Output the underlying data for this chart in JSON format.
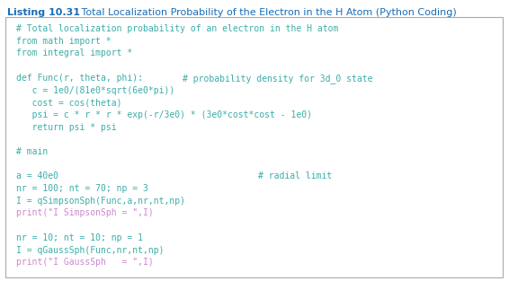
{
  "title_bold": "Listing 10.31",
  "title_rest": "   Total Localization Probability of the Electron in the H Atom (Python Coding)",
  "title_color": "#1a6db5",
  "background_color": "#ffffff",
  "box_bg_color": "#ffffff",
  "box_edge_color": "#aaaaaa",
  "code_lines": [
    {
      "indent": 0,
      "segments": [
        {
          "text": "# Total localization probability of an electron in the H atom",
          "color": "#3aada8"
        }
      ]
    },
    {
      "indent": 0,
      "segments": [
        {
          "text": "from math import *",
          "color": "#3aada8"
        }
      ]
    },
    {
      "indent": 0,
      "segments": [
        {
          "text": "from integral import *",
          "color": "#3aada8"
        }
      ]
    },
    {
      "indent": 0,
      "segments": []
    },
    {
      "indent": 0,
      "segments": [
        {
          "text": "def Func(r, theta, phi):                    ",
          "color": "#3aada8"
        },
        {
          "text": "# probability density for 3d_0 state",
          "color": "#3aada8"
        }
      ]
    },
    {
      "indent": 0,
      "segments": [
        {
          "text": "   c = 1e0/(81e0*sqrt(6e0*pi))",
          "color": "#3aada8"
        }
      ]
    },
    {
      "indent": 0,
      "segments": [
        {
          "text": "   cost = cos(theta)",
          "color": "#3aada8"
        }
      ]
    },
    {
      "indent": 0,
      "segments": [
        {
          "text": "   psi = c * r * r * exp(-r/3e0) * (3e0*cost*cost - 1e0)",
          "color": "#3aada8"
        }
      ]
    },
    {
      "indent": 0,
      "segments": [
        {
          "text": "   return psi * psi",
          "color": "#3aada8"
        }
      ]
    },
    {
      "indent": 0,
      "segments": []
    },
    {
      "indent": 0,
      "segments": [
        {
          "text": "# main",
          "color": "#3aada8"
        }
      ]
    },
    {
      "indent": 0,
      "segments": []
    },
    {
      "indent": 0,
      "segments": [
        {
          "text": "a = 40e0                                                        ",
          "color": "#3aada8"
        },
        {
          "text": "# radial limit",
          "color": "#3aada8"
        }
      ]
    },
    {
      "indent": 0,
      "segments": [
        {
          "text": "nr = 100; nt = 70; np = 3",
          "color": "#3aada8"
        }
      ]
    },
    {
      "indent": 0,
      "segments": [
        {
          "text": "I = qSimpsonSph(Func,a,nr,nt,np)",
          "color": "#3aada8"
        }
      ]
    },
    {
      "indent": 0,
      "segments": [
        {
          "text": "print(\"I SimpsonSph = \",I)",
          "color": "#cc88cc"
        }
      ]
    },
    {
      "indent": 0,
      "segments": []
    },
    {
      "indent": 0,
      "segments": [
        {
          "text": "nr = 10; nt = 10; np = 1",
          "color": "#3aada8"
        }
      ]
    },
    {
      "indent": 0,
      "segments": [
        {
          "text": "I = qGaussSph(Func,nr,nt,np)",
          "color": "#3aada8"
        }
      ]
    },
    {
      "indent": 0,
      "segments": [
        {
          "text": "print(\"I GaussSph   = \",I)",
          "color": "#cc88cc"
        }
      ]
    }
  ],
  "figsize": [
    5.66,
    3.13
  ],
  "dpi": 100,
  "font_size": 7.0,
  "title_font_size": 8.0
}
